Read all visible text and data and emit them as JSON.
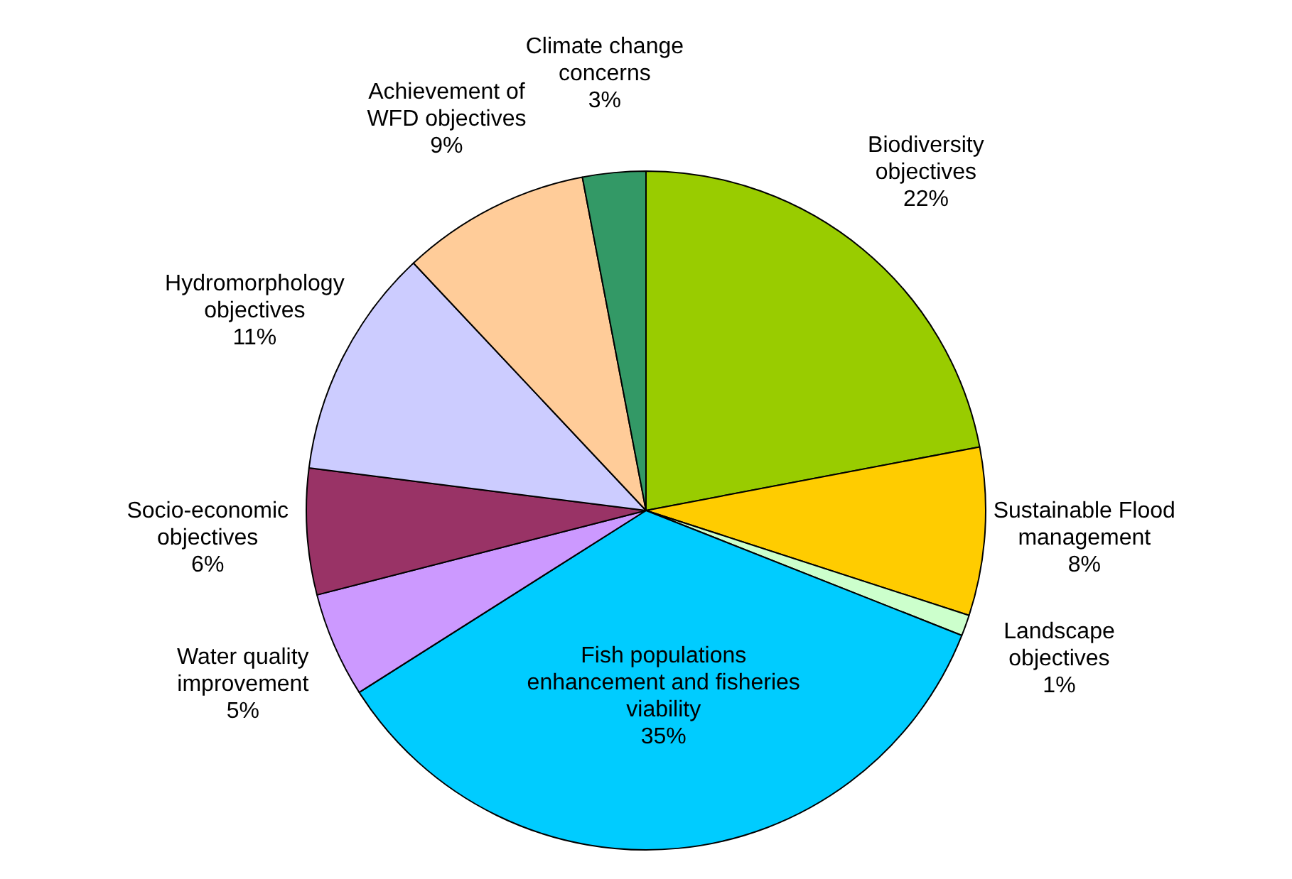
{
  "chart_data": {
    "type": "pie",
    "categories": [
      "Biodiversity objectives",
      "Sustainable Flood management",
      "Landscape objectives",
      "Fish populations enhancement and fisheries viability",
      "Water quality improvement",
      "Socio-economic objectives",
      "Hydromorphology objectives",
      "Achievement of WFD objectives",
      "Climate change concerns"
    ],
    "values": [
      22,
      8,
      1,
      35,
      5,
      6,
      11,
      9,
      3
    ],
    "value_labels": [
      "22%",
      "8%",
      "1%",
      "35%",
      "5%",
      "6%",
      "11%",
      "9%",
      "3%"
    ],
    "colors": [
      "#99cc00",
      "#ffcc00",
      "#ccffcc",
      "#00ccff",
      "#cc99ff",
      "#993366",
      "#ccccff",
      "#ffcc99",
      "#339966"
    ]
  }
}
